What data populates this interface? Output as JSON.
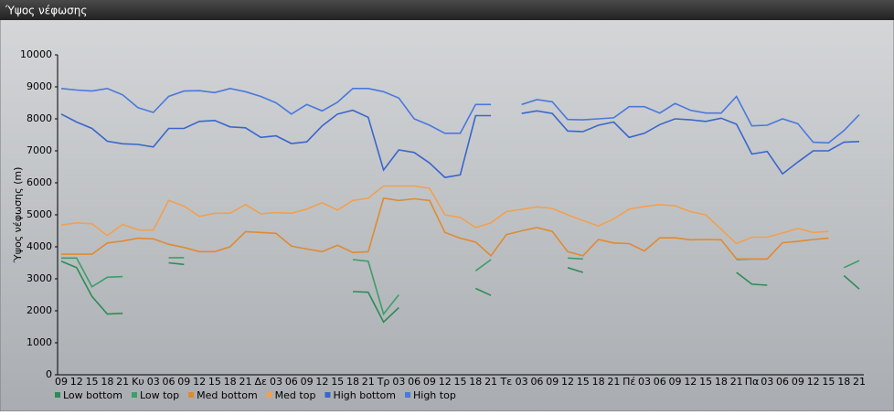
{
  "window_title": "Ύψος νέφωσης",
  "chart_data": {
    "type": "line",
    "y_label": "Ύψος νέφωσης (m)",
    "categories": [
      "09",
      "12",
      "15",
      "18",
      "21",
      "Κυ",
      "03",
      "06",
      "09",
      "12",
      "15",
      "18",
      "21",
      "Δε",
      "03",
      "06",
      "09",
      "12",
      "15",
      "18",
      "21",
      "Τρ",
      "03",
      "06",
      "09",
      "12",
      "15",
      "18",
      "21",
      "Τε",
      "03",
      "06",
      "09",
      "12",
      "15",
      "18",
      "21",
      "Πέ",
      "03",
      "06",
      "09",
      "12",
      "15",
      "18",
      "21",
      "Πα",
      "03",
      "06",
      "09",
      "12",
      "15",
      "18",
      "21"
    ],
    "ylim": [
      0,
      10000
    ],
    "yticks": [
      0,
      1000,
      2000,
      3000,
      4000,
      5000,
      6000,
      7000,
      8000,
      9000,
      10000
    ],
    "grid": false,
    "legend": "bottom",
    "series": [
      {
        "name": "Low bottom",
        "color": "#2e8b57",
        "values": [
          3550,
          3350,
          2450,
          1900,
          1920,
          null,
          null,
          3500,
          3450,
          null,
          null,
          null,
          null,
          null,
          null,
          null,
          null,
          null,
          null,
          2600,
          2580,
          1650,
          2100,
          null,
          null,
          null,
          null,
          2700,
          2480,
          null,
          null,
          null,
          null,
          3350,
          3200,
          null,
          null,
          null,
          null,
          null,
          null,
          null,
          null,
          null,
          3200,
          2830,
          2800,
          null,
          null,
          null,
          null,
          3100,
          2680
        ]
      },
      {
        "name": "Low top",
        "color": "#3c9e6a",
        "values": [
          3650,
          3650,
          2750,
          3050,
          3070,
          null,
          null,
          3660,
          3660,
          null,
          null,
          null,
          null,
          null,
          null,
          null,
          null,
          null,
          null,
          3600,
          3550,
          1900,
          2500,
          null,
          null,
          null,
          null,
          3250,
          3600,
          null,
          null,
          null,
          null,
          3650,
          3620,
          null,
          null,
          null,
          null,
          null,
          null,
          null,
          null,
          null,
          3600,
          3620,
          3620,
          null,
          null,
          null,
          null,
          3350,
          3570
        ]
      },
      {
        "name": "Med bottom",
        "color": "#e08a30",
        "values": [
          3770,
          3770,
          3770,
          4120,
          4180,
          4270,
          4250,
          4080,
          3980,
          3850,
          3850,
          4000,
          4470,
          4450,
          4420,
          4020,
          3930,
          3850,
          4050,
          3820,
          3850,
          5520,
          5450,
          5500,
          5450,
          4450,
          4270,
          4150,
          3720,
          4380,
          4500,
          4600,
          4480,
          3850,
          3720,
          4230,
          4120,
          4100,
          3870,
          4280,
          4280,
          4220,
          4230,
          4220,
          3620,
          3620,
          3620,
          4130,
          4170,
          4230,
          4270,
          null,
          null
        ]
      },
      {
        "name": "Med top",
        "color": "#f0a050",
        "values": [
          4680,
          4750,
          4720,
          4350,
          4700,
          4530,
          4520,
          5450,
          5270,
          4950,
          5050,
          5050,
          5320,
          5030,
          5070,
          5050,
          5180,
          5380,
          5150,
          5450,
          5520,
          5900,
          5900,
          5900,
          5830,
          5000,
          4920,
          4600,
          4750,
          5100,
          5170,
          5250,
          5200,
          5000,
          4820,
          4650,
          4870,
          5180,
          5260,
          5320,
          5280,
          5100,
          5000,
          4550,
          4100,
          4300,
          4300,
          4430,
          4570,
          4450,
          4480,
          null,
          null
        ]
      },
      {
        "name": "High bottom",
        "color": "#3a66cc",
        "values": [
          8150,
          7900,
          7700,
          7300,
          7220,
          7200,
          7120,
          7700,
          7700,
          7920,
          7950,
          7750,
          7720,
          7420,
          7470,
          7230,
          7280,
          7780,
          8150,
          8270,
          8050,
          6400,
          7030,
          6950,
          6620,
          6170,
          6250,
          8100,
          8100,
          null,
          8170,
          8250,
          8170,
          7620,
          7600,
          7800,
          7900,
          7420,
          7550,
          7820,
          8000,
          7970,
          7920,
          8020,
          7830,
          6900,
          6980,
          6280,
          6650,
          7000,
          7000,
          7270,
          7290
        ]
      },
      {
        "name": "High top",
        "color": "#4a78dc",
        "values": [
          8950,
          8900,
          8870,
          8950,
          8750,
          8350,
          8200,
          8700,
          8870,
          8880,
          8820,
          8950,
          8850,
          8700,
          8500,
          8150,
          8450,
          8250,
          8520,
          8950,
          8950,
          8850,
          8650,
          8000,
          7800,
          7550,
          7550,
          8450,
          8450,
          null,
          8450,
          8600,
          8530,
          7980,
          7970,
          8000,
          8030,
          8380,
          8380,
          8180,
          8480,
          8270,
          8180,
          8180,
          8700,
          7780,
          7800,
          8000,
          7850,
          7270,
          7250,
          7630,
          8130
        ]
      }
    ]
  }
}
